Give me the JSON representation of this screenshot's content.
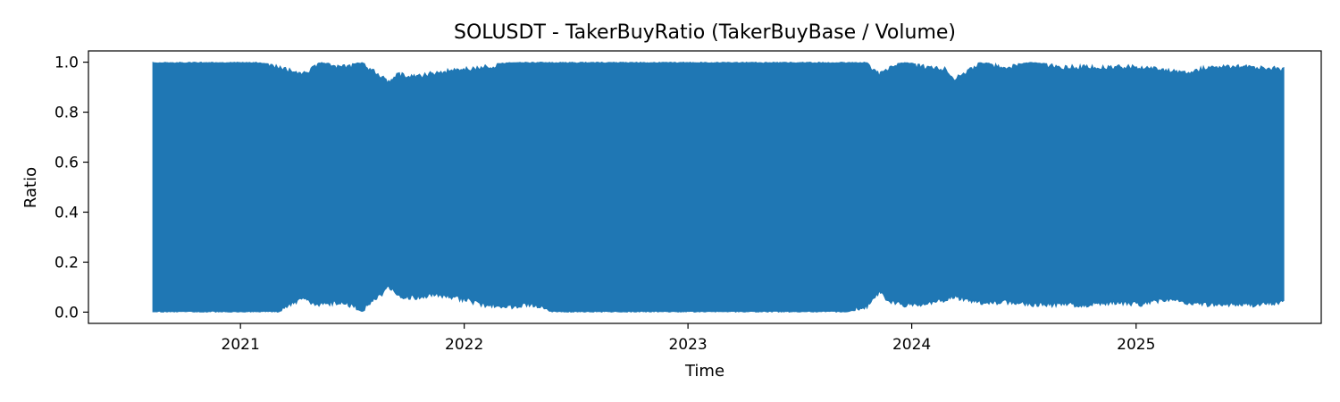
{
  "chart_data": {
    "type": "area",
    "title": "SOLUSDT - TakerBuyRatio (TakerBuyBase / Volume)",
    "xlabel": "Time",
    "ylabel": "Ratio",
    "x_domain": [
      "2020-04-28",
      "2025-10-30"
    ],
    "ylim": [
      -0.045,
      1.045
    ],
    "x_ticks": [
      "2021",
      "2022",
      "2023",
      "2024",
      "2025"
    ],
    "y_ticks": [
      "0.0",
      "0.2",
      "0.4",
      "0.6",
      "0.8",
      "1.0"
    ],
    "grid": false,
    "legend": "none",
    "series": [
      {
        "color": "#1f77b4",
        "x": [
          "2020-08-11",
          "2020-11-01",
          "2021-02-01",
          "2021-03-05",
          "2021-04-10",
          "2021-05-10",
          "2021-06-15",
          "2021-07-20",
          "2021-09-01",
          "2021-09-15",
          "2021-10-15",
          "2021-11-20",
          "2022-01-01",
          "2022-02-01",
          "2022-03-15",
          "2022-04-20",
          "2022-05-25",
          "2022-07-01",
          "2022-08-10",
          "2022-09-20",
          "2022-11-01",
          "2022-12-15",
          "2023-02-01",
          "2023-03-20",
          "2023-05-01",
          "2023-06-15",
          "2023-08-01",
          "2023-09-15",
          "2023-10-20",
          "2023-11-10",
          "2023-11-25",
          "2023-12-20",
          "2024-01-25",
          "2024-02-25",
          "2024-03-10",
          "2024-04-20",
          "2024-06-01",
          "2024-07-15",
          "2024-09-01",
          "2024-10-15",
          "2024-12-01",
          "2025-01-10",
          "2025-02-15",
          "2025-03-25",
          "2025-05-01",
          "2025-06-10",
          "2025-07-20",
          "2025-09-01"
        ],
        "y_max": [
          1.0,
          1.0,
          1.0,
          0.99,
          0.96,
          1.0,
          0.99,
          1.0,
          0.93,
          0.96,
          0.95,
          0.97,
          0.98,
          0.99,
          1.0,
          1.0,
          1.0,
          1.0,
          1.0,
          1.0,
          1.0,
          1.0,
          1.0,
          1.0,
          1.0,
          1.0,
          1.0,
          1.0,
          1.0,
          0.96,
          0.99,
          1.0,
          0.99,
          0.98,
          0.94,
          1.0,
          0.99,
          1.0,
          0.99,
          0.99,
          0.99,
          0.99,
          0.98,
          0.97,
          0.99,
          0.99,
          0.99,
          0.98
        ],
        "y_min": [
          0.0,
          0.0,
          0.0,
          0.0,
          0.04,
          0.02,
          0.03,
          0.0,
          0.09,
          0.05,
          0.05,
          0.06,
          0.04,
          0.02,
          0.01,
          0.02,
          0.0,
          0.0,
          0.0,
          0.0,
          0.0,
          0.0,
          0.0,
          0.0,
          0.0,
          0.0,
          0.0,
          0.0,
          0.01,
          0.07,
          0.03,
          0.02,
          0.02,
          0.04,
          0.05,
          0.03,
          0.03,
          0.02,
          0.02,
          0.02,
          0.03,
          0.02,
          0.04,
          0.03,
          0.02,
          0.02,
          0.02,
          0.03
        ]
      }
    ]
  }
}
